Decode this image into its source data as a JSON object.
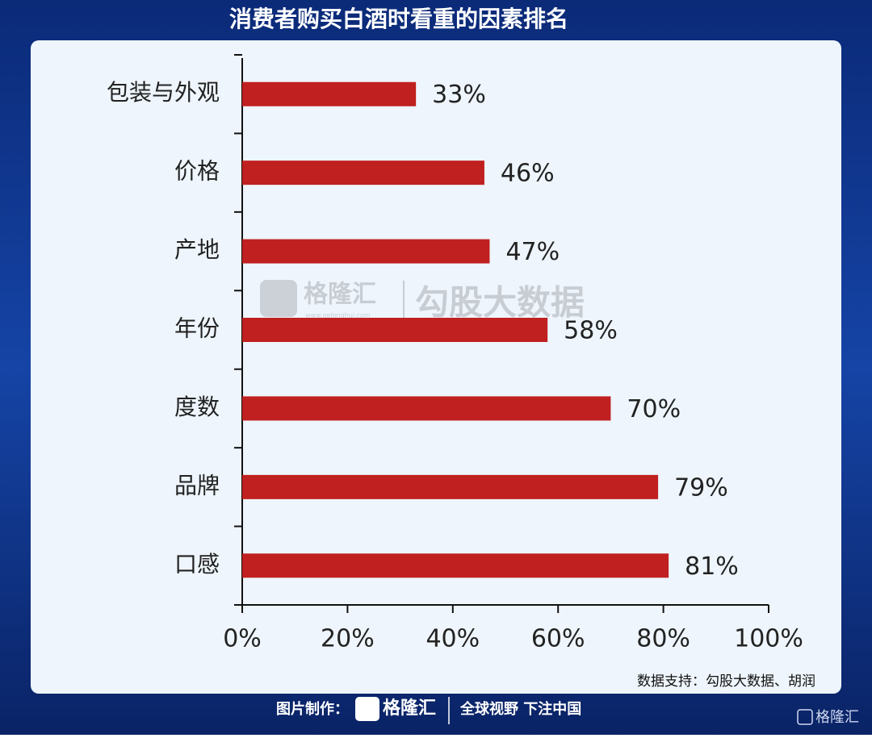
{
  "header": {
    "title": "消费者购买白酒时看重的因素排名"
  },
  "watermark": {
    "brand": "格隆汇",
    "site": "www.gelonghui.com",
    "source": "勾股大数据"
  },
  "chart_data": {
    "type": "bar",
    "orientation": "horizontal",
    "categories": [
      "包装与外观",
      "价格",
      "产地",
      "年份",
      "度数",
      "品牌",
      "口感"
    ],
    "values": [
      33,
      46,
      47,
      58,
      70,
      79,
      81
    ],
    "value_labels": [
      "33%",
      "46%",
      "47%",
      "58%",
      "70%",
      "79%",
      "81%"
    ],
    "color": "#c0201f",
    "xlim": [
      0,
      100
    ],
    "xticks": [
      {
        "value": 0,
        "label": "0%"
      },
      {
        "value": 20,
        "label": "20%"
      },
      {
        "value": 40,
        "label": "40%"
      },
      {
        "value": 60,
        "label": "60%"
      },
      {
        "value": 80,
        "label": "80%"
      },
      {
        "value": 100,
        "label": "100%"
      }
    ],
    "grid": false
  },
  "source_note": "数据支持：勾股大数据、胡润",
  "footer": {
    "made_by": "图片制作：",
    "brand": "格隆汇",
    "slogan": "全球视野 下注中国",
    "corner_brand": "格隆汇"
  }
}
